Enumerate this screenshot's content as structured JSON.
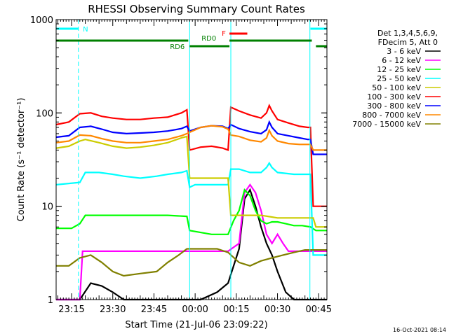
{
  "chart_data": {
    "type": "line",
    "title": "RHESSI Observing Summary Count Rates",
    "xlabel": "Start Time (21-Jul-06 23:09:22)",
    "ylabel": "Count Rate (s⁻¹ detector⁻¹)",
    "yscale": "log",
    "ylim": [
      1,
      1000
    ],
    "ytick_labels": [
      "1",
      "10",
      "100",
      "1000"
    ],
    "ytick_values": [
      1,
      10,
      100,
      1000
    ],
    "xtick_labels": [
      "23:15",
      "23:30",
      "23:45",
      "00:00",
      "00:15",
      "00:30",
      "00:45"
    ],
    "xtick_minutes": [
      15,
      30,
      45,
      60,
      75,
      90,
      105
    ],
    "xlim_minutes": [
      9.37,
      108.0
    ],
    "legend_header": [
      "Det 1,3,4,5,6,9,",
      "FDecim 5, Att 0"
    ],
    "series": [
      {
        "name": "3 - 6 keV",
        "color": "#000000",
        "points": [
          [
            9.4,
            1.0
          ],
          [
            18,
            1.0
          ],
          [
            22,
            1.5
          ],
          [
            26,
            1.4
          ],
          [
            30,
            1.2
          ],
          [
            34,
            1.0
          ],
          [
            58,
            1.0
          ],
          [
            62,
            1.0
          ],
          [
            68,
            1.2
          ],
          [
            72,
            1.5
          ],
          [
            76,
            3.5
          ],
          [
            78,
            12
          ],
          [
            80,
            15
          ],
          [
            82,
            10
          ],
          [
            84,
            6
          ],
          [
            86,
            4
          ],
          [
            88,
            3
          ],
          [
            90,
            2
          ],
          [
            93,
            1.2
          ],
          [
            96,
            1.0
          ],
          [
            100,
            1.0
          ],
          [
            104,
            1.0
          ],
          [
            108,
            1.0
          ]
        ]
      },
      {
        "name": "6 - 12 keV",
        "color": "#ff00ff",
        "points": [
          [
            9.4,
            1.0
          ],
          [
            18,
            1.0
          ],
          [
            19,
            3.3
          ],
          [
            25,
            3.3
          ],
          [
            30,
            3.3
          ],
          [
            40,
            3.3
          ],
          [
            50,
            3.3
          ],
          [
            58,
            3.3
          ],
          [
            66,
            3.3
          ],
          [
            72,
            3.3
          ],
          [
            76,
            4
          ],
          [
            78,
            14
          ],
          [
            80,
            17
          ],
          [
            82,
            14
          ],
          [
            84,
            9
          ],
          [
            86,
            5
          ],
          [
            88,
            4
          ],
          [
            90,
            5
          ],
          [
            92,
            4
          ],
          [
            94,
            3.3
          ],
          [
            98,
            3.3
          ],
          [
            104,
            3.3
          ],
          [
            108,
            3.3
          ]
        ]
      },
      {
        "name": "12 - 25 keV",
        "color": "#00ff00",
        "points": [
          [
            9.4,
            5.8
          ],
          [
            15,
            5.8
          ],
          [
            18,
            6.5
          ],
          [
            20,
            8
          ],
          [
            25,
            8
          ],
          [
            30,
            8
          ],
          [
            40,
            8
          ],
          [
            50,
            8
          ],
          [
            57,
            7.8
          ],
          [
            58,
            5.5
          ],
          [
            66,
            5.0
          ],
          [
            72,
            5.0
          ],
          [
            74,
            7
          ],
          [
            76,
            9
          ],
          [
            78,
            15
          ],
          [
            80,
            13
          ],
          [
            82,
            9
          ],
          [
            84,
            7
          ],
          [
            86,
            6.5
          ],
          [
            88,
            6.8
          ],
          [
            90,
            6.8
          ],
          [
            93,
            6.5
          ],
          [
            96,
            6.2
          ],
          [
            99,
            6.2
          ],
          [
            102,
            6.0
          ],
          [
            104,
            5.5
          ],
          [
            108,
            5.5
          ]
        ]
      },
      {
        "name": "25 - 50 keV",
        "color": "#00ffff",
        "points": [
          [
            9.4,
            17
          ],
          [
            18,
            18
          ],
          [
            20,
            23
          ],
          [
            25,
            23
          ],
          [
            30,
            22
          ],
          [
            34,
            21
          ],
          [
            40,
            20
          ],
          [
            46,
            21
          ],
          [
            50,
            22
          ],
          [
            55,
            23
          ],
          [
            57,
            24
          ],
          [
            58,
            16
          ],
          [
            60,
            17
          ],
          [
            66,
            17
          ],
          [
            72,
            17
          ],
          [
            73,
            25
          ],
          [
            76,
            25
          ],
          [
            80,
            23
          ],
          [
            84,
            23
          ],
          [
            86,
            26
          ],
          [
            87,
            29
          ],
          [
            88,
            26
          ],
          [
            90,
            23
          ],
          [
            96,
            22
          ],
          [
            102,
            22
          ],
          [
            103,
            3
          ],
          [
            108,
            3
          ]
        ]
      },
      {
        "name": "50 - 100 keV",
        "color": "#cccc00",
        "points": [
          [
            9.4,
            42
          ],
          [
            14,
            44
          ],
          [
            18,
            50
          ],
          [
            20,
            52
          ],
          [
            25,
            48
          ],
          [
            30,
            44
          ],
          [
            35,
            42
          ],
          [
            40,
            43
          ],
          [
            45,
            45
          ],
          [
            50,
            48
          ],
          [
            55,
            54
          ],
          [
            57,
            56
          ],
          [
            58,
            20
          ],
          [
            62,
            20
          ],
          [
            66,
            20
          ],
          [
            72,
            20
          ],
          [
            73,
            8
          ],
          [
            78,
            8
          ],
          [
            84,
            8
          ],
          [
            90,
            7.5
          ],
          [
            96,
            7.5
          ],
          [
            103,
            7.5
          ],
          [
            104,
            6
          ],
          [
            108,
            6
          ]
        ]
      },
      {
        "name": "100 - 300 keV",
        "color": "#ff0000",
        "points": [
          [
            9.4,
            75
          ],
          [
            14,
            80
          ],
          [
            18,
            98
          ],
          [
            22,
            100
          ],
          [
            26,
            92
          ],
          [
            30,
            88
          ],
          [
            35,
            85
          ],
          [
            40,
            85
          ],
          [
            45,
            88
          ],
          [
            50,
            90
          ],
          [
            55,
            100
          ],
          [
            57,
            108
          ],
          [
            58,
            40
          ],
          [
            62,
            43
          ],
          [
            66,
            44
          ],
          [
            70,
            42
          ],
          [
            72,
            40
          ],
          [
            73,
            115
          ],
          [
            76,
            105
          ],
          [
            80,
            95
          ],
          [
            84,
            88
          ],
          [
            86,
            100
          ],
          [
            87,
            120
          ],
          [
            88,
            105
          ],
          [
            90,
            85
          ],
          [
            94,
            78
          ],
          [
            98,
            72
          ],
          [
            101,
            70
          ],
          [
            102,
            70
          ],
          [
            103,
            10
          ],
          [
            108,
            10
          ]
        ]
      },
      {
        "name": "300 - 800 keV",
        "color": "#0000ff",
        "points": [
          [
            9.4,
            55
          ],
          [
            14,
            57
          ],
          [
            18,
            70
          ],
          [
            22,
            72
          ],
          [
            26,
            67
          ],
          [
            30,
            62
          ],
          [
            35,
            60
          ],
          [
            40,
            61
          ],
          [
            45,
            62
          ],
          [
            50,
            64
          ],
          [
            55,
            68
          ],
          [
            57,
            72
          ],
          [
            58,
            64
          ],
          [
            62,
            70
          ],
          [
            66,
            73
          ],
          [
            70,
            72
          ],
          [
            72,
            68
          ],
          [
            73,
            75
          ],
          [
            76,
            68
          ],
          [
            80,
            63
          ],
          [
            84,
            60
          ],
          [
            86,
            66
          ],
          [
            87,
            80
          ],
          [
            88,
            70
          ],
          [
            90,
            60
          ],
          [
            94,
            57
          ],
          [
            98,
            54
          ],
          [
            101,
            52
          ],
          [
            102,
            52
          ],
          [
            103,
            36
          ],
          [
            108,
            36
          ]
        ]
      },
      {
        "name": "800 - 7000 keV",
        "color": "#ff8800",
        "points": [
          [
            9.4,
            48
          ],
          [
            14,
            50
          ],
          [
            18,
            58
          ],
          [
            22,
            57
          ],
          [
            26,
            53
          ],
          [
            30,
            50
          ],
          [
            35,
            48
          ],
          [
            40,
            48
          ],
          [
            45,
            50
          ],
          [
            50,
            52
          ],
          [
            55,
            57
          ],
          [
            57,
            60
          ],
          [
            58,
            62
          ],
          [
            62,
            70
          ],
          [
            66,
            73
          ],
          [
            70,
            71
          ],
          [
            72,
            67
          ],
          [
            73,
            58
          ],
          [
            76,
            56
          ],
          [
            80,
            51
          ],
          [
            84,
            49
          ],
          [
            86,
            54
          ],
          [
            87,
            65
          ],
          [
            88,
            57
          ],
          [
            90,
            50
          ],
          [
            94,
            47
          ],
          [
            98,
            46
          ],
          [
            101,
            46
          ],
          [
            102,
            46
          ],
          [
            103,
            40
          ],
          [
            108,
            40
          ]
        ]
      },
      {
        "name": "7000 - 15000 keV",
        "color": "#808000",
        "points": [
          [
            9.4,
            2.3
          ],
          [
            14,
            2.3
          ],
          [
            18,
            2.8
          ],
          [
            22,
            3.0
          ],
          [
            26,
            2.5
          ],
          [
            30,
            2.0
          ],
          [
            34,
            1.8
          ],
          [
            40,
            1.9
          ],
          [
            46,
            2.0
          ],
          [
            50,
            2.5
          ],
          [
            54,
            3.0
          ],
          [
            57,
            3.5
          ],
          [
            58,
            3.5
          ],
          [
            64,
            3.5
          ],
          [
            68,
            3.5
          ],
          [
            72,
            3.2
          ],
          [
            76,
            2.5
          ],
          [
            80,
            2.3
          ],
          [
            84,
            2.6
          ],
          [
            88,
            2.8
          ],
          [
            92,
            3.0
          ],
          [
            96,
            3.2
          ],
          [
            100,
            3.4
          ],
          [
            104,
            3.4
          ],
          [
            108,
            3.4
          ]
        ]
      }
    ],
    "annotations": [
      {
        "label": "N",
        "color": "#00ffff",
        "segments": [
          [
            9.4,
            17.5
          ],
          [
            102,
            108
          ]
        ]
      },
      {
        "label": "F",
        "color": "#ff0000",
        "segments": [
          [
            72.5,
            79
          ]
        ]
      },
      {
        "label": "RD0",
        "color": "#008000",
        "segments": [
          [
            9.4,
            57.5
          ],
          [
            72.5,
            102.5
          ]
        ]
      },
      {
        "label": "RD6",
        "color": "#008000",
        "segments": [
          [
            58,
            72.5
          ],
          [
            104,
            108
          ]
        ]
      }
    ],
    "vertical_lines": [
      {
        "minute": 17.5,
        "style": "dashed",
        "color": "#00ffff"
      },
      {
        "minute": 101.8,
        "style": "solid",
        "color": "#00ffff"
      },
      {
        "minute": 108.0,
        "style": "dashed",
        "color": "#00ffff"
      },
      {
        "minute": 58.0,
        "style": "solid",
        "color": "#00ffff"
      },
      {
        "minute": 73.0,
        "style": "solid",
        "color": "#00ffff"
      }
    ],
    "grid": false
  },
  "stamp": "16-Oct-2021 08:14"
}
